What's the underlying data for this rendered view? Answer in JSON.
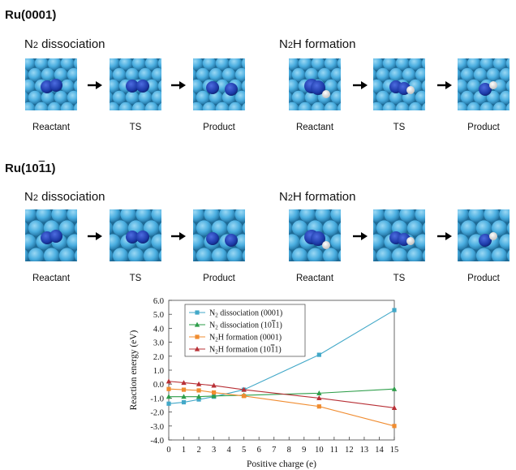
{
  "sections": [
    {
      "title": "Ru(0001)",
      "groups": [
        {
          "title": "N2 dissociation",
          "captions": [
            "Reactant",
            "TS",
            "Product"
          ]
        },
        {
          "title": "N2H formation",
          "captions": [
            "Reactant",
            "TS",
            "Product"
          ]
        }
      ]
    },
    {
      "title": "Ru(1011)",
      "groups": [
        {
          "title": "N2 dissociation",
          "captions": [
            "Reactant",
            "TS",
            "Product"
          ]
        },
        {
          "title": "N2H formation",
          "captions": [
            "Reactant",
            "TS",
            "Product"
          ]
        }
      ]
    }
  ],
  "colors": {
    "ru_atom": "#4aaee0",
    "n_atom": "#1c3aa8",
    "h_atom": "#ffffff"
  },
  "chart_data": {
    "type": "line",
    "xlabel": "Positive charge (e)",
    "ylabel": "Reaction energy (eV)",
    "xlim": [
      0,
      15
    ],
    "ylim": [
      -4.0,
      6.0
    ],
    "xticks": [
      0,
      1,
      2,
      3,
      4,
      5,
      6,
      7,
      8,
      9,
      10,
      11,
      12,
      13,
      14,
      15
    ],
    "yticks": [
      "6.0",
      "5.0",
      "4.0",
      "3.0",
      "2.0",
      "1.0",
      "0.0",
      "-1.0",
      "-2.0",
      "-3.0",
      "-4.0"
    ],
    "grid": false,
    "legend_position": "top-left",
    "series": [
      {
        "name": "N2 dissociation (0001)",
        "color": "#42a8c8",
        "marker": "square",
        "x": [
          0,
          1,
          2,
          3,
          5,
          10,
          15
        ],
        "y": [
          -1.4,
          -1.3,
          -1.1,
          -0.9,
          -0.4,
          2.1,
          5.3
        ]
      },
      {
        "name": "N2 dissociation (1011)",
        "color": "#2e9e4a",
        "marker": "triangle",
        "x": [
          0,
          1,
          2,
          3,
          5,
          10,
          15
        ],
        "y": [
          -0.9,
          -0.9,
          -0.9,
          -0.85,
          -0.8,
          -0.65,
          -0.35
        ]
      },
      {
        "name": "N2H formation (0001)",
        "color": "#f08c30",
        "marker": "square",
        "x": [
          0,
          1,
          2,
          3,
          5,
          10,
          15
        ],
        "y": [
          -0.35,
          -0.4,
          -0.45,
          -0.6,
          -0.85,
          -1.6,
          -3.0
        ]
      },
      {
        "name": "N2H formation (1011)",
        "color": "#b83036",
        "marker": "triangle",
        "x": [
          0,
          1,
          2,
          3,
          5,
          10,
          15
        ],
        "y": [
          0.2,
          0.1,
          0.0,
          -0.1,
          -0.4,
          -1.0,
          -1.7
        ]
      }
    ]
  }
}
